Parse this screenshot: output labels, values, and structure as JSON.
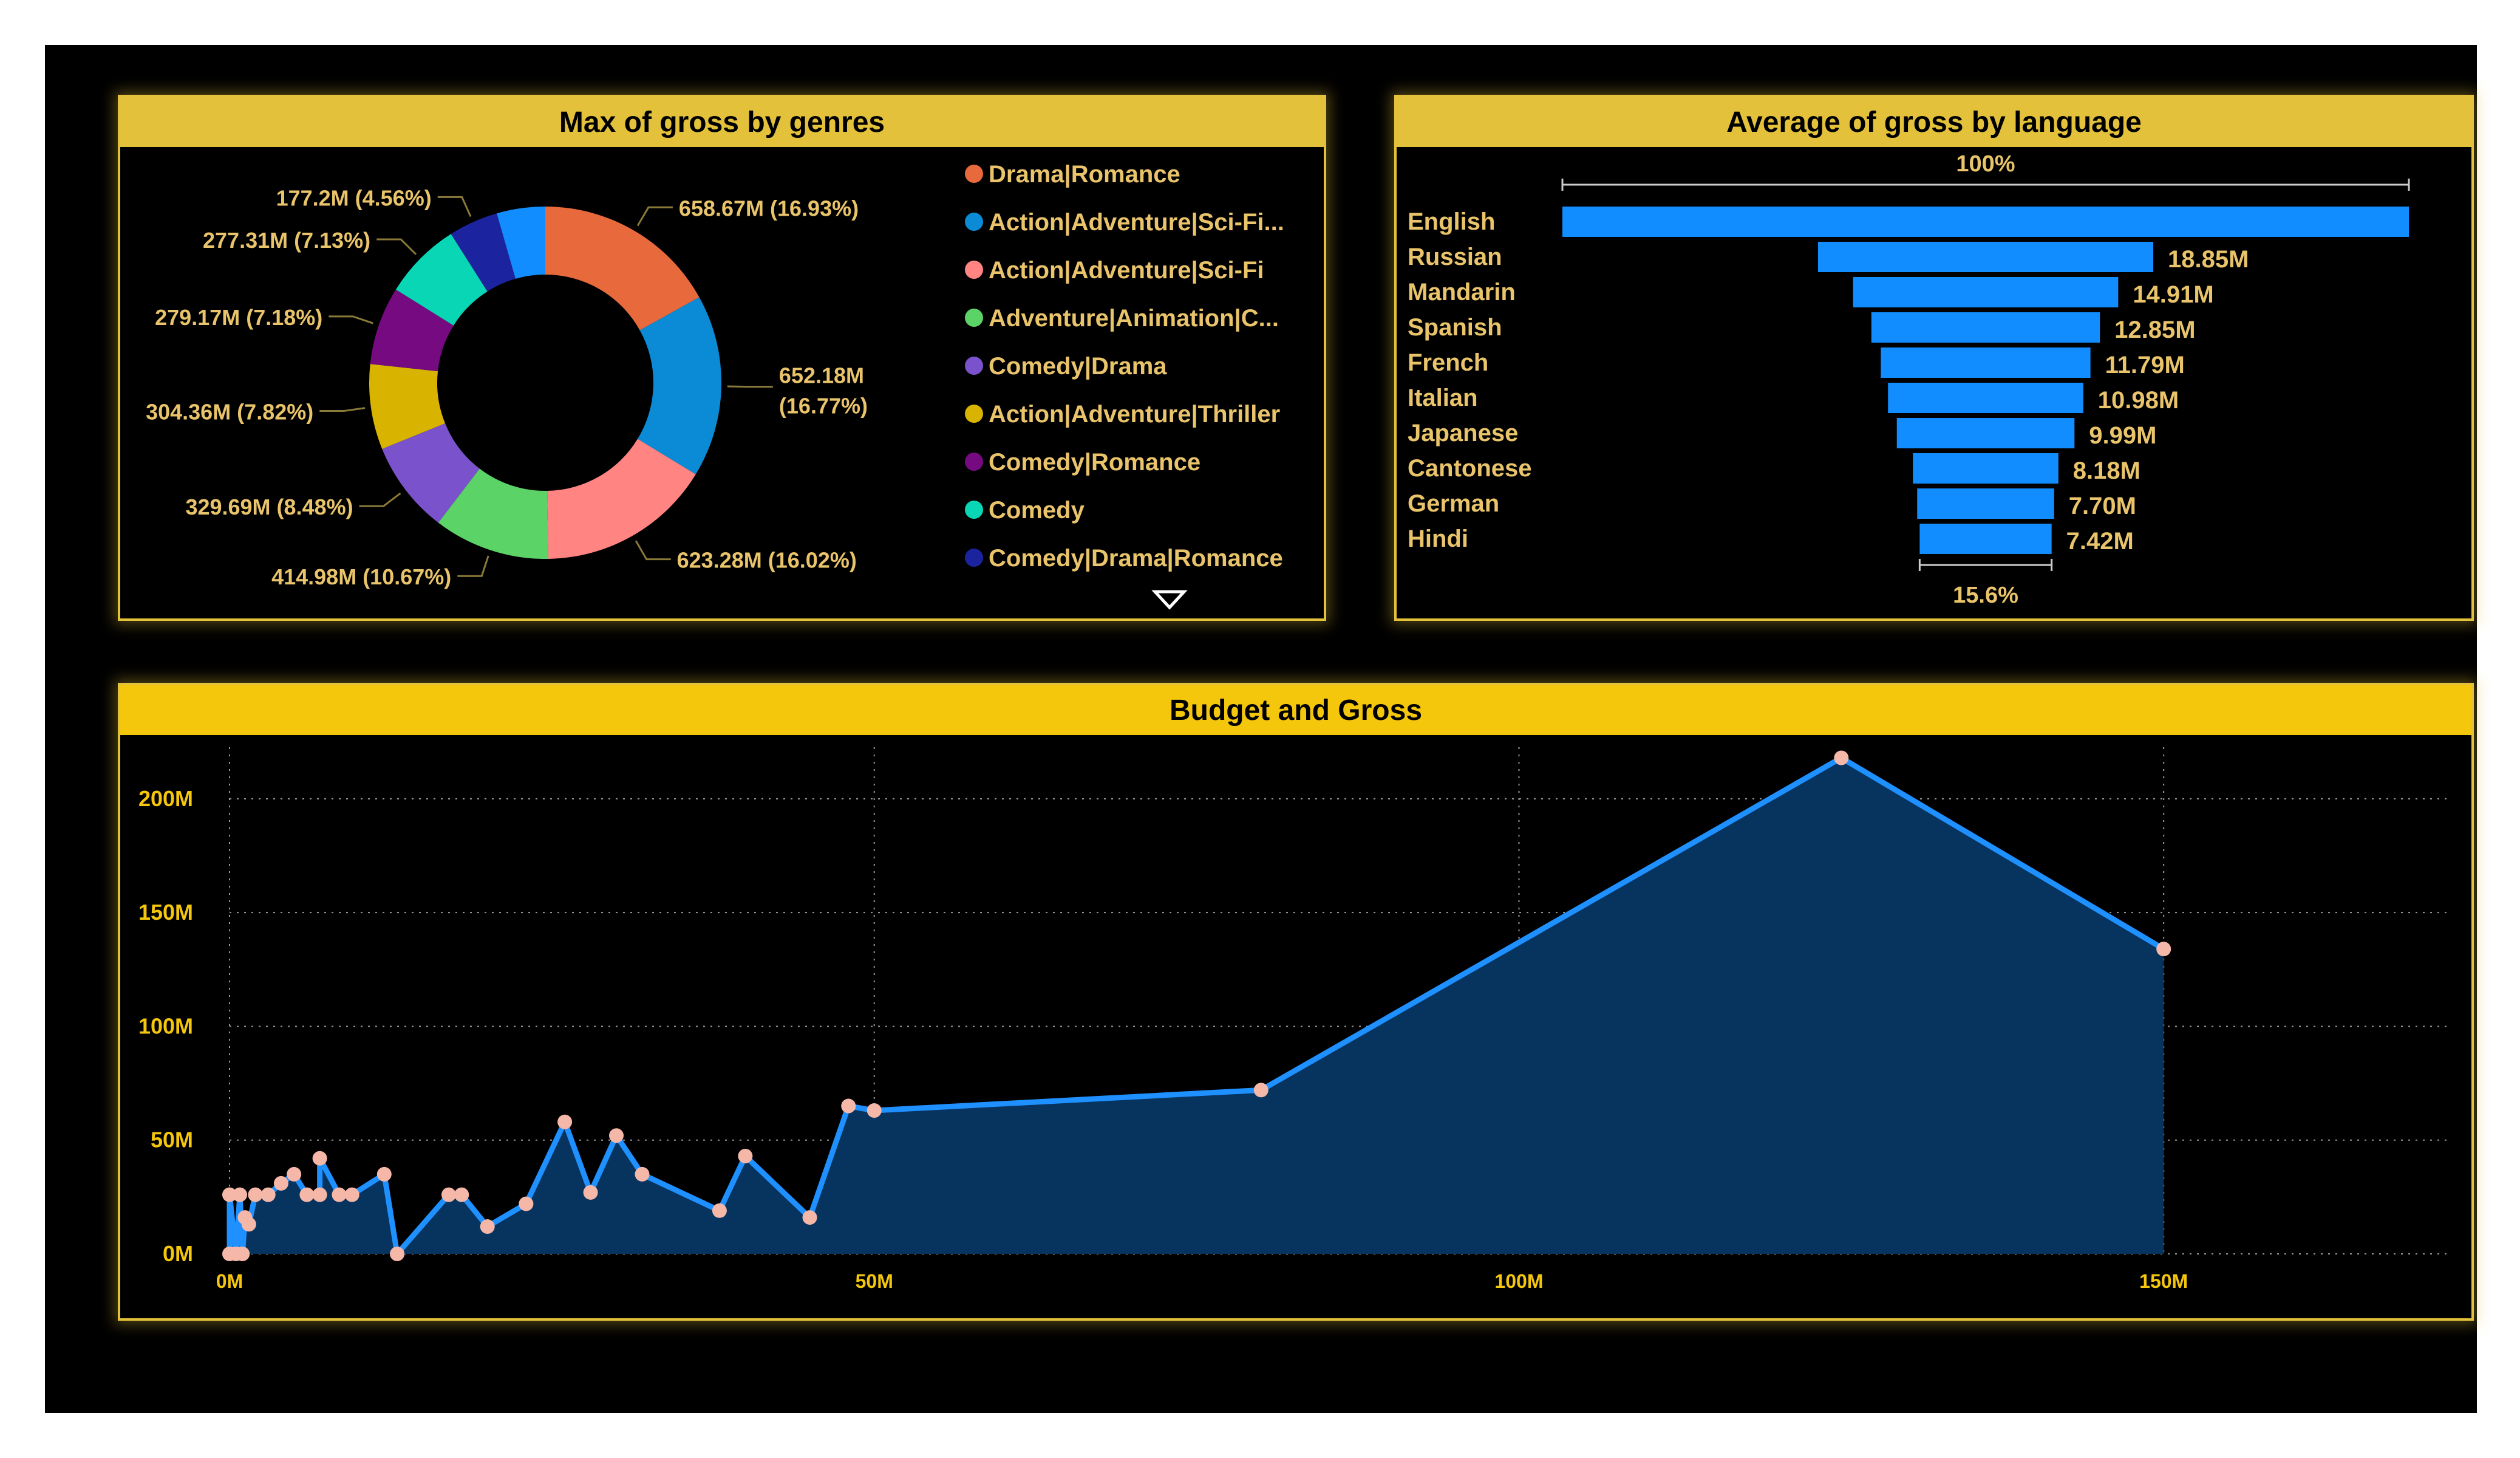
{
  "colors": {
    "background": "#000000",
    "panel_border": "#e3c13a",
    "header": "#e3c13a",
    "header_budget": "#f4c60c",
    "label": "#e9c46a",
    "axis_text": "#f4c60c",
    "bar": "#118dff",
    "line": "#1e90ff",
    "area": "#07335f",
    "marker": "#f5b8a8"
  },
  "chart_data": [
    {
      "type": "pie",
      "title": "Max of gross by genres",
      "donut": true,
      "legend_position": "right",
      "slices": [
        {
          "label": "Drama|Romance",
          "value": 658.67,
          "display": "658.67M (16.93%)",
          "color": "#e8693b"
        },
        {
          "label": "Action|Adventure|Sci-Fi...",
          "value": 652.18,
          "display": "652.18M (16.77%)",
          "color": "#0b8bd6"
        },
        {
          "label": "Action|Adventure|Sci-Fi",
          "value": 623.28,
          "display": "623.28M (16.02%)",
          "color": "#ff8482"
        },
        {
          "label": "Adventure|Animation|C...",
          "value": 414.98,
          "display": "414.98M (10.67%)",
          "color": "#5cd366"
        },
        {
          "label": "Comedy|Drama",
          "value": 329.69,
          "display": "329.69M (8.48%)",
          "color": "#7a53cc"
        },
        {
          "label": "Action|Adventure|Thriller",
          "value": 304.36,
          "display": "304.36M (7.82%)",
          "color": "#d8b400"
        },
        {
          "label": "Comedy|Romance",
          "value": 279.17,
          "display": "279.17M (7.18%)",
          "color": "#760b81"
        },
        {
          "label": "Comedy",
          "value": 277.31,
          "display": "277.31M (7.13%)",
          "color": "#08d6b4"
        },
        {
          "label": "Comedy|Drama|Romance",
          "value": 177.2,
          "display": "177.2M (4.56%)",
          "color": "#1c239e"
        },
        {
          "label": "",
          "value": 172.8,
          "display": "",
          "color": "#118dff"
        }
      ]
    },
    {
      "type": "bar",
      "subtype": "funnel",
      "title": "Average of gross by language",
      "top_label": "100%",
      "bottom_label": "15.6%",
      "categories": [
        "English",
        "Russian",
        "Mandarin",
        "Spanish",
        "French",
        "Italian",
        "Japanese",
        "Cantonese",
        "German",
        "Hindi"
      ],
      "values": [
        47.6,
        18.85,
        14.91,
        12.85,
        11.79,
        10.98,
        9.99,
        8.18,
        7.7,
        7.42
      ],
      "value_labels": [
        "",
        "18.85M",
        "14.91M",
        "12.85M",
        "11.79M",
        "10.98M",
        "9.99M",
        "8.18M",
        "7.70M",
        "7.42M"
      ]
    },
    {
      "type": "area",
      "title": "Budget and Gross",
      "x_ticks": [
        "0M",
        "50M",
        "100M",
        "150M"
      ],
      "y_ticks": [
        "0M",
        "50M",
        "100M",
        "150M",
        "200M"
      ],
      "xlim": [
        0,
        162
      ],
      "ylim": [
        0,
        220
      ],
      "grid": true,
      "points": [
        [
          0,
          0
        ],
        [
          0,
          26
        ],
        [
          0.5,
          0
        ],
        [
          0.8,
          26
        ],
        [
          1,
          0
        ],
        [
          1.2,
          16
        ],
        [
          1.5,
          13
        ],
        [
          2,
          26
        ],
        [
          3,
          26
        ],
        [
          4,
          31
        ],
        [
          5,
          35
        ],
        [
          6,
          26
        ],
        [
          7,
          26
        ],
        [
          7,
          42
        ],
        [
          8.5,
          26
        ],
        [
          9.5,
          26
        ],
        [
          12,
          35
        ],
        [
          13,
          0
        ],
        [
          17,
          26
        ],
        [
          18,
          26
        ],
        [
          20,
          12
        ],
        [
          23,
          22
        ],
        [
          26,
          58
        ],
        [
          28,
          27
        ],
        [
          30,
          52
        ],
        [
          32,
          35
        ],
        [
          38,
          19
        ],
        [
          40,
          43
        ],
        [
          45,
          16
        ],
        [
          48,
          65
        ],
        [
          50,
          63
        ],
        [
          80,
          72
        ],
        [
          125,
          218
        ],
        [
          150,
          134
        ]
      ]
    }
  ]
}
